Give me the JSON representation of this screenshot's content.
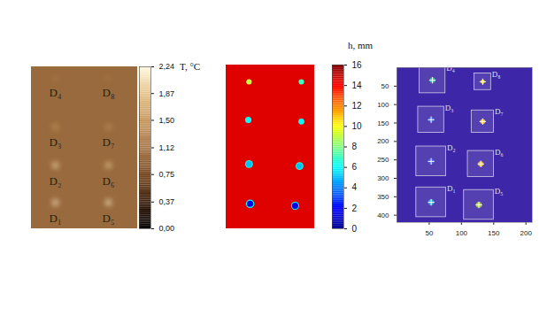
{
  "chart_data": [
    {
      "type": "heatmap",
      "categories": [
        "D₁",
        "D₂",
        "D₃",
        "D₄",
        "D₅",
        "D₆",
        "D₇",
        "D₈"
      ],
      "x": [
        54,
        54,
        54,
        54,
        174,
        174,
        174,
        174
      ],
      "y": [
        352,
        255,
        156,
        30,
        352,
        255,
        156,
        30
      ],
      "values": [
        2.1,
        2.0,
        1.5,
        1.15,
        2.1,
        1.9,
        1.45,
        1.1
      ],
      "radius": [
        20,
        20,
        18,
        16,
        20,
        20,
        18,
        16
      ],
      "background": 1.0,
      "xlim": [
        0,
        240
      ],
      "ylim": [
        0,
        420
      ],
      "tick_labels": false,
      "colorbar": {
        "label": "T, °C",
        "range": [
          0,
          2.24
        ],
        "ticks": [
          {
            "value": 0,
            "label": "0,00"
          },
          {
            "value": 0.37,
            "label": "0,37"
          },
          {
            "value": 0.75,
            "label": "0,75"
          },
          {
            "value": 1.12,
            "label": "1,12"
          },
          {
            "value": 1.5,
            "label": "1,50"
          },
          {
            "value": 1.87,
            "label": "1,87"
          },
          {
            "value": 2.24,
            "label": "2,24"
          }
        ]
      }
    },
    {
      "type": "heatmap",
      "x": [
        65,
        62,
        60,
        62,
        187,
        199,
        204,
        204
      ],
      "y": [
        356,
        254,
        141,
        43,
        361,
        259,
        145,
        43
      ],
      "values": [
        1.5,
        5,
        6,
        9,
        1.5,
        5,
        6,
        7
      ],
      "radius": [
        19,
        17,
        12,
        10,
        19,
        17,
        11,
        9
      ],
      "rim": [
        6,
        6.5,
        6,
        9,
        6,
        6.5,
        6,
        7
      ],
      "rim_radius": [
        34,
        29,
        19,
        14,
        31,
        29,
        17,
        14
      ],
      "background": 14.5,
      "xlim": [
        0,
        240
      ],
      "ylim": [
        0,
        420
      ],
      "tick_labels": false,
      "colorbar": {
        "label": "h, mm",
        "range": [
          0,
          16
        ],
        "ticks": [
          0,
          2,
          4,
          6,
          8,
          10,
          12,
          14,
          16
        ]
      }
    },
    {
      "type": "scatter",
      "categories": [
        "D₁",
        "D₂",
        "D₃",
        "D₄",
        "D₅",
        "D₆",
        "D₇",
        "D₈"
      ],
      "x": [
        53,
        53,
        53,
        55,
        127,
        130,
        133,
        133
      ],
      "y": [
        365,
        254,
        141,
        34,
        372,
        261,
        146,
        38
      ],
      "radius": [
        14,
        14,
        12,
        12,
        14,
        12,
        10,
        7
      ],
      "colors": [
        "#36a8d8",
        "#4a5ae8",
        "#3f6be8",
        "#33c2a0",
        "#a8c83c",
        "#e0b83a",
        "#f4c23c",
        "#f8e030"
      ],
      "marker": "plus",
      "xlim": [
        0,
        210
      ],
      "ylim": [
        0,
        420
      ],
      "xticks": [
        50,
        100,
        150,
        200
      ],
      "yticks": [
        50,
        100,
        150,
        200,
        250,
        300,
        350,
        400
      ]
    }
  ]
}
